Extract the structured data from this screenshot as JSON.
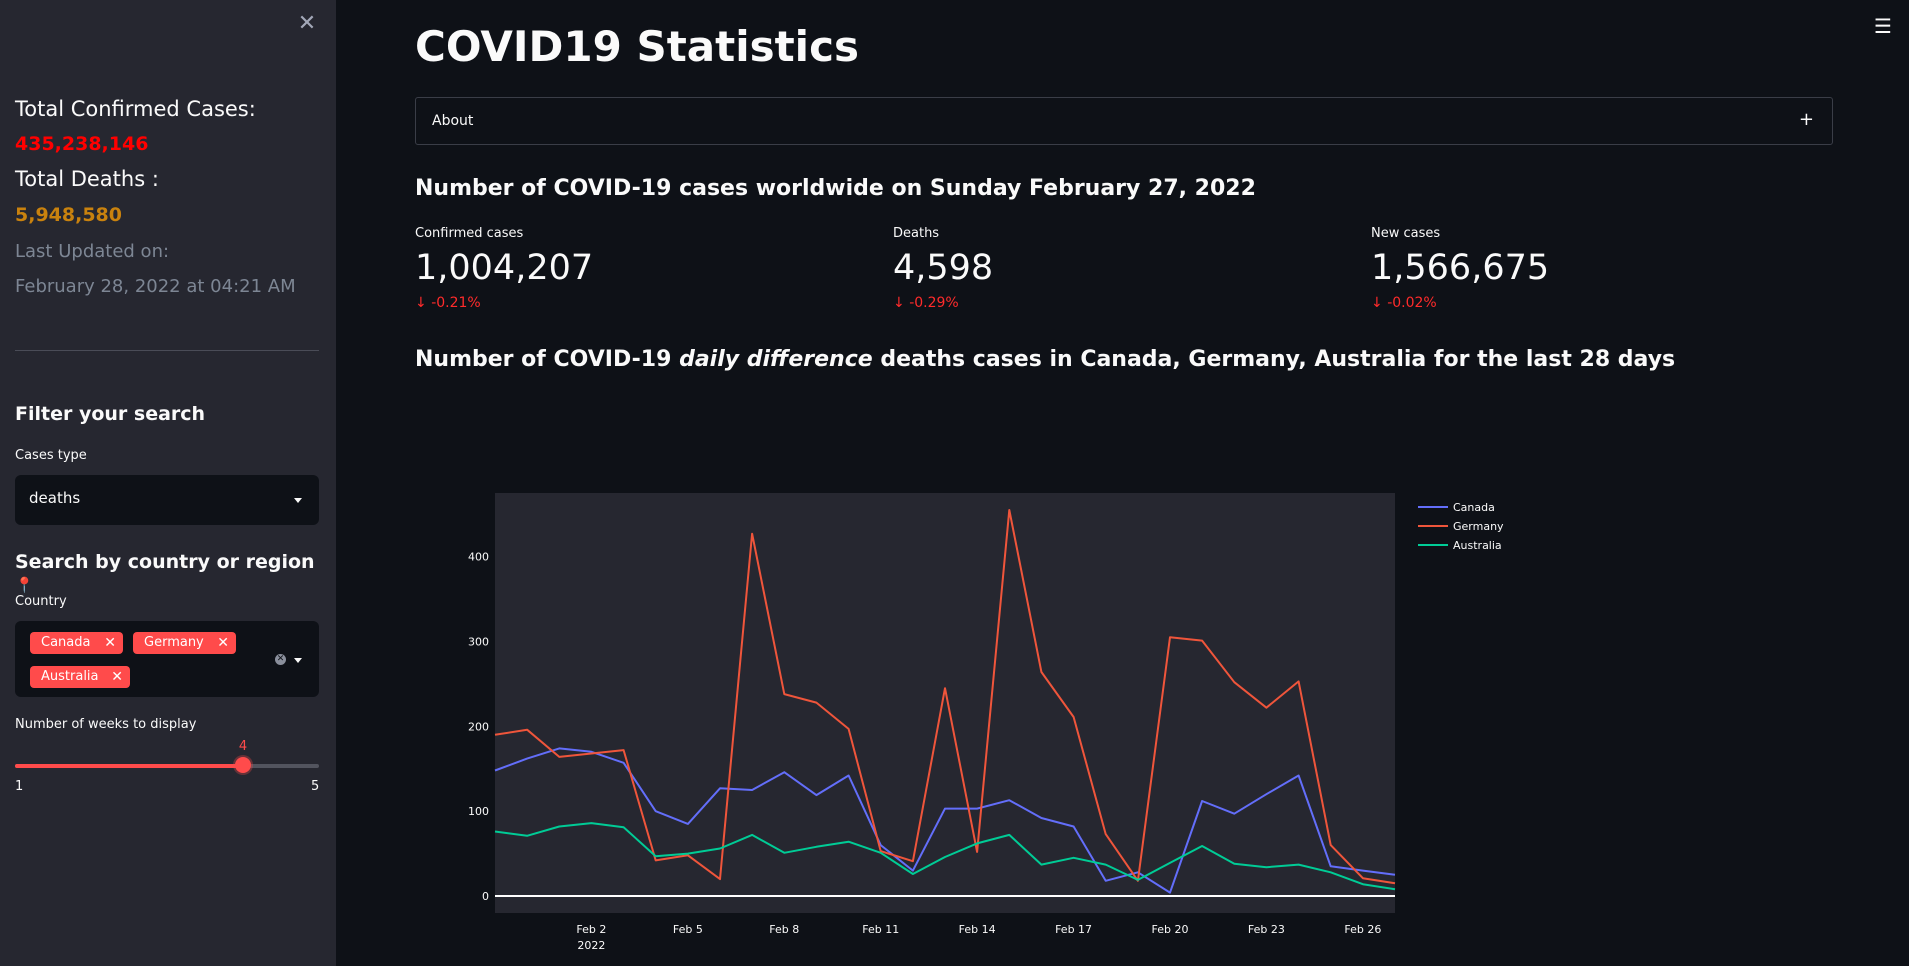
{
  "sidebar": {
    "close_icon": "close-icon",
    "total_confirmed_label": "Total Confirmed Cases:",
    "total_confirmed_value": "435,238,146",
    "total_deaths_label": "Total Deaths :",
    "total_deaths_value": "5,948,580",
    "last_updated_label": "Last Updated on:",
    "last_updated_value": "February 28, 2022 at 04:21 AM",
    "filter_heading": "Filter your search",
    "cases_type_label": "Cases type",
    "cases_type_value": "deaths",
    "search_heading": "Search by country or region",
    "search_heading_icon": "📍",
    "country_label": "Country",
    "countries": [
      "Canada",
      "Germany",
      "Australia"
    ],
    "weeks_label": "Number of weeks to display",
    "weeks_min": "1",
    "weeks_max": "5",
    "weeks_value": "4"
  },
  "main": {
    "title": "COVID19 Statistics",
    "about_label": "About",
    "about_icon": "+",
    "worldwide_heading": "Number of COVID-19 cases worldwide on Sunday February 27, 2022",
    "metrics": [
      {
        "label": "Confirmed cases",
        "value": "1,004,207",
        "delta": "-0.21%"
      },
      {
        "label": "Deaths",
        "value": "4,598",
        "delta": "-0.29%"
      },
      {
        "label": "New cases",
        "value": "1,566,675",
        "delta": "-0.02%"
      }
    ],
    "chart_heading_pre": "Number of COVID-19 ",
    "chart_heading_em": "daily difference",
    "chart_heading_post": " deaths cases in Canada, Germany, Australia for the last 28 days"
  },
  "chart_data": {
    "type": "line",
    "title": "",
    "xlabel": "",
    "ylabel": "",
    "x": [
      "2022-01-30",
      "2022-01-31",
      "2022-02-01",
      "2022-02-02",
      "2022-02-03",
      "2022-02-04",
      "2022-02-05",
      "2022-02-06",
      "2022-02-07",
      "2022-02-08",
      "2022-02-09",
      "2022-02-10",
      "2022-02-11",
      "2022-02-12",
      "2022-02-13",
      "2022-02-14",
      "2022-02-15",
      "2022-02-16",
      "2022-02-17",
      "2022-02-18",
      "2022-02-19",
      "2022-02-20",
      "2022-02-21",
      "2022-02-22",
      "2022-02-23",
      "2022-02-24",
      "2022-02-25",
      "2022-02-26",
      "2022-02-27"
    ],
    "x_tick_labels": [
      "Feb 2",
      "Feb 5",
      "Feb 8",
      "Feb 11",
      "Feb 14",
      "Feb 17",
      "Feb 20",
      "Feb 23",
      "Feb 26"
    ],
    "x_tick_year": "2022",
    "y_ticks": [
      0,
      100,
      200,
      300,
      400
    ],
    "ylim": [
      -20,
      475
    ],
    "legend_position": "right",
    "grid": false,
    "series": [
      {
        "name": "Canada",
        "color": "#636efa",
        "values": [
          148,
          162,
          174,
          170,
          157,
          100,
          85,
          127,
          125,
          146,
          119,
          142,
          60,
          30,
          103,
          103,
          113,
          92,
          82,
          18,
          28,
          4,
          112,
          97,
          120,
          142,
          35,
          30,
          25
        ]
      },
      {
        "name": "Germany",
        "color": "#ef553b",
        "values": [
          190,
          196,
          164,
          168,
          172,
          42,
          48,
          20,
          427,
          238,
          228,
          197,
          53,
          41,
          245,
          52,
          455,
          264,
          211,
          73,
          18,
          305,
          301,
          252,
          222,
          253,
          60,
          21,
          15
        ]
      },
      {
        "name": "Australia",
        "color": "#00cc96",
        "values": [
          76,
          71,
          82,
          86,
          81,
          47,
          50,
          56,
          72,
          51,
          58,
          64,
          51,
          26,
          46,
          62,
          72,
          37,
          45,
          37,
          19,
          39,
          59,
          38,
          34,
          37,
          28,
          14,
          8
        ]
      }
    ]
  },
  "colors": {
    "accent": "#ff4b4b",
    "confirmed": "#ff0000",
    "deaths": "#c9820e",
    "background": "#0e1117",
    "sidebar": "#262730"
  }
}
